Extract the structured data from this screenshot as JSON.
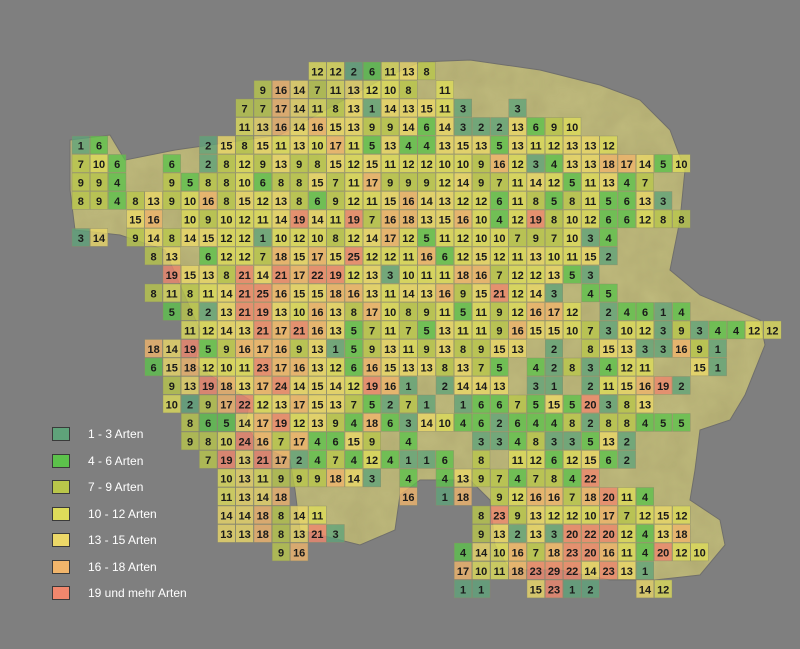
{
  "legend": {
    "items": [
      {
        "label": "1 - 3 Arten",
        "color": "#5fa37a"
      },
      {
        "label": "4 - 6 Arten",
        "color": "#5cc24b"
      },
      {
        "label": "7 - 9 Arten",
        "color": "#b9c64a"
      },
      {
        "label": "10 - 12 Arten",
        "color": "#dedc5a"
      },
      {
        "label": "13 - 15 Arten",
        "color": "#ecd868"
      },
      {
        "label": "16 - 18 Arten",
        "color": "#f1b56b"
      },
      {
        "label": "19 und mehr Arten",
        "color": "#f0876d"
      }
    ]
  },
  "map": {
    "land_color": "#c9c37e",
    "rows": [
      {
        "first_col": 13,
        "values": [
          12,
          12,
          2,
          6,
          11,
          13,
          8
        ]
      },
      {
        "first_col": 10,
        "values": [
          9,
          16,
          14,
          7,
          11,
          13,
          12,
          10,
          8,
          0,
          11
        ]
      },
      {
        "first_col": 9,
        "values": [
          7,
          7,
          17,
          14,
          11,
          8,
          13,
          1,
          14,
          13,
          15,
          11,
          3,
          0,
          0,
          3
        ]
      },
      {
        "first_col": 9,
        "values": [
          11,
          13,
          16,
          14,
          16,
          15,
          13,
          9,
          9,
          14,
          6,
          14,
          3,
          2,
          2,
          13,
          6,
          9,
          10
        ]
      },
      {
        "first_col": 0,
        "values": [
          1,
          6,
          0,
          0,
          0,
          0,
          0,
          2,
          15,
          8,
          15,
          11,
          13,
          10,
          17,
          11,
          5,
          13,
          4,
          4,
          13,
          15,
          13,
          5,
          13,
          11,
          12,
          13,
          13,
          12
        ]
      },
      {
        "first_col": 0,
        "values": [
          7,
          10,
          6,
          0,
          0,
          6,
          0,
          2,
          8,
          12,
          9,
          13,
          9,
          8,
          15,
          12,
          15,
          11,
          12,
          12,
          10,
          10,
          9,
          16,
          12,
          3,
          4,
          13,
          13,
          18,
          17,
          14,
          5,
          10
        ]
      },
      {
        "first_col": 0,
        "values": [
          9,
          9,
          4,
          0,
          0,
          9,
          5,
          8,
          8,
          10,
          6,
          8,
          8,
          15,
          7,
          11,
          17,
          9,
          9,
          9,
          12,
          14,
          9,
          7,
          11,
          14,
          12,
          5,
          11,
          13,
          4,
          7
        ]
      },
      {
        "first_col": 0,
        "values": [
          8,
          9,
          4,
          8,
          13,
          9,
          10,
          16,
          8,
          15,
          12,
          13,
          8,
          6,
          9,
          12,
          11,
          15,
          16,
          14,
          13,
          12,
          12,
          6,
          11,
          8,
          5,
          8,
          11,
          5,
          6,
          13,
          3
        ]
      },
      {
        "first_col": 1,
        "values": [
          0,
          0,
          15,
          16,
          0,
          10,
          9,
          10,
          12,
          11,
          14,
          19,
          14,
          11,
          19,
          7,
          16,
          18,
          13,
          15,
          16,
          10,
          4,
          12,
          19,
          8,
          10,
          12,
          6,
          6,
          12,
          8,
          8
        ]
      },
      {
        "first_col": 0,
        "values": [
          3,
          14,
          0,
          9,
          14,
          8,
          14,
          15,
          12,
          12,
          1,
          10,
          12,
          10,
          8,
          12,
          14,
          17,
          12,
          5,
          11,
          12,
          10,
          10,
          7,
          9,
          7,
          10,
          3,
          4
        ]
      },
      {
        "first_col": 4,
        "values": [
          8,
          13,
          0,
          6,
          12,
          12,
          7,
          18,
          15,
          17,
          15,
          25,
          12,
          12,
          11,
          16,
          6,
          12,
          15,
          12,
          11,
          13,
          10,
          11,
          15,
          2
        ]
      },
      {
        "first_col": 5,
        "values": [
          19,
          15,
          13,
          8,
          21,
          14,
          21,
          17,
          22,
          19,
          12,
          13,
          3,
          10,
          11,
          11,
          18,
          16,
          7,
          12,
          12,
          13,
          5,
          3
        ]
      },
      {
        "first_col": 4,
        "values": [
          8,
          11,
          8,
          11,
          14,
          21,
          25,
          16,
          15,
          15,
          18,
          16,
          13,
          11,
          14,
          13,
          16,
          9,
          15,
          21,
          12,
          14,
          3,
          0,
          4,
          5,
          0,
          0
        ]
      },
      {
        "first_col": 5,
        "values": [
          5,
          8,
          2,
          13,
          21,
          19,
          13,
          10,
          16,
          13,
          8,
          17,
          10,
          8,
          9,
          11,
          5,
          11,
          9,
          12,
          16,
          17,
          12,
          0,
          2,
          4,
          6,
          1,
          4
        ]
      },
      {
        "first_col": 6,
        "values": [
          11,
          12,
          14,
          13,
          21,
          17,
          21,
          16,
          13,
          5,
          7,
          11,
          7,
          5,
          13,
          11,
          11,
          9,
          16,
          15,
          15,
          10,
          7,
          3,
          10,
          12,
          3,
          9,
          3,
          4,
          4,
          12,
          12
        ]
      },
      {
        "first_col": 4,
        "values": [
          18,
          14,
          19,
          5,
          9,
          16,
          17,
          16,
          9,
          13,
          1,
          5,
          9,
          13,
          11,
          9,
          13,
          8,
          9,
          15,
          13,
          0,
          2,
          0,
          8,
          15,
          13,
          3,
          3,
          16,
          9,
          1
        ]
      },
      {
        "first_col": 4,
        "values": [
          6,
          15,
          18,
          12,
          10,
          11,
          23,
          17,
          16,
          13,
          12,
          6,
          16,
          15,
          13,
          13,
          8,
          13,
          7,
          5,
          0,
          4,
          2,
          8,
          3,
          4,
          12,
          11,
          0,
          0,
          15,
          1
        ]
      },
      {
        "first_col": 5,
        "values": [
          9,
          13,
          19,
          18,
          13,
          17,
          24,
          14,
          15,
          14,
          12,
          19,
          16,
          1,
          0,
          2,
          14,
          14,
          13,
          0,
          3,
          1,
          0,
          2,
          11,
          15,
          16,
          19,
          2
        ]
      },
      {
        "first_col": 5,
        "values": [
          10,
          2,
          9,
          17,
          22,
          12,
          13,
          17,
          15,
          13,
          7,
          5,
          2,
          7,
          1,
          0,
          1,
          6,
          6,
          7,
          5,
          15,
          5,
          20,
          3,
          8,
          13
        ]
      },
      {
        "first_col": 6,
        "values": [
          8,
          6,
          5,
          14,
          17,
          19,
          12,
          13,
          9,
          4,
          18,
          6,
          3,
          14,
          10,
          4,
          6,
          2,
          6,
          4,
          4,
          8,
          2,
          8,
          8,
          4,
          5,
          5
        ]
      },
      {
        "first_col": 6,
        "values": [
          9,
          8,
          10,
          24,
          16,
          7,
          17,
          4,
          6,
          15,
          9,
          0,
          4,
          0,
          0,
          0,
          3,
          3,
          4,
          8,
          3,
          3,
          5,
          13,
          2
        ]
      },
      {
        "first_col": 7,
        "values": [
          7,
          19,
          13,
          21,
          17,
          2,
          4,
          7,
          4,
          12,
          4,
          1,
          1,
          6,
          0,
          8,
          0,
          11,
          12,
          6,
          12,
          15,
          6,
          2
        ]
      },
      {
        "first_col": 8,
        "values": [
          10,
          13,
          11,
          9,
          9,
          9,
          18,
          14,
          3,
          0,
          4,
          0,
          4,
          13,
          9,
          7,
          4,
          7,
          8,
          4,
          22
        ]
      },
      {
        "first_col": 8,
        "values": [
          11,
          13,
          14,
          18,
          0,
          0,
          0,
          0,
          0,
          0,
          16,
          0,
          1,
          18,
          0,
          9,
          12,
          16,
          16,
          7,
          18,
          20,
          11,
          4
        ]
      },
      {
        "first_col": 8,
        "values": [
          14,
          14,
          18,
          8,
          14,
          11,
          0,
          0,
          0,
          0,
          0,
          0,
          0,
          0,
          8,
          23,
          9,
          13,
          12,
          12,
          10,
          17,
          7,
          12,
          15,
          12
        ]
      },
      {
        "first_col": 8,
        "values": [
          13,
          13,
          18,
          8,
          13,
          21,
          3,
          0,
          0,
          0,
          0,
          0,
          0,
          0,
          9,
          13,
          2,
          13,
          3,
          20,
          22,
          20,
          12,
          4,
          13,
          18
        ]
      },
      {
        "first_col": 11,
        "values": [
          9,
          16,
          0,
          0,
          0,
          0,
          0,
          0,
          0,
          0,
          4,
          14,
          10,
          16,
          7,
          18,
          23,
          20,
          16,
          11,
          4,
          20,
          12,
          10
        ]
      },
      {
        "first_col": 21,
        "values": [
          17,
          10,
          11,
          18,
          23,
          29,
          22,
          14,
          23,
          13,
          1
        ]
      },
      {
        "first_col": 21,
        "values": [
          1,
          1,
          0,
          0,
          15,
          23,
          1,
          2,
          0,
          0,
          14,
          12
        ]
      }
    ]
  }
}
